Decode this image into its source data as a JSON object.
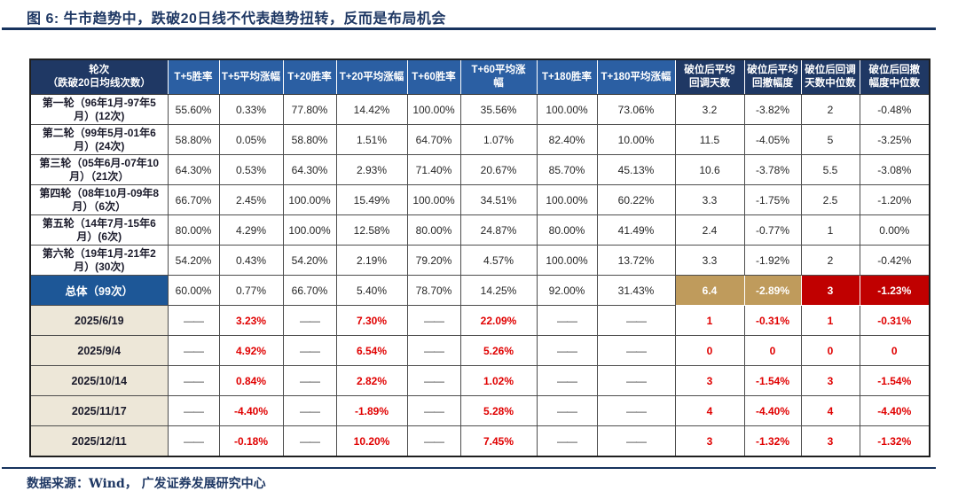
{
  "title": "图 6:  牛市趋势中，跌破20日线不代表趋势扭转，反而是布局机会",
  "footer": {
    "source": "数据来源：Wind， 广发证券发展研究中心"
  },
  "colors": {
    "title_navy": "#1F3864",
    "header_navy": "#1F3864",
    "header_blue": "#2B5FA3",
    "total_label_blue": "#1D5797",
    "highlight_tan": "#BF9B5C",
    "highlight_red_bg": "#C00000",
    "value_red_text": "#E00000",
    "date_label_beige": "#EDE7D8"
  },
  "table": {
    "columns": [
      {
        "label": "轮次\n（跌破20日均线次数）",
        "theme": "navy"
      },
      {
        "label": "T+5胜率",
        "theme": "blue"
      },
      {
        "label": "T+5平均涨幅",
        "theme": "blue"
      },
      {
        "label": "T+20胜率",
        "theme": "blue"
      },
      {
        "label": "T+20平均涨幅",
        "theme": "blue"
      },
      {
        "label": "T+60胜率",
        "theme": "blue"
      },
      {
        "label": "T+60平均涨\n幅",
        "theme": "blue"
      },
      {
        "label": "T+180胜率",
        "theme": "blue"
      },
      {
        "label": "T+180平均涨幅",
        "theme": "blue"
      },
      {
        "label": "破位后平均\n回调天数",
        "theme": "navy"
      },
      {
        "label": "破位后平均\n回撤幅度",
        "theme": "navy"
      },
      {
        "label": "破位后回调\n天数中位数",
        "theme": "navy"
      },
      {
        "label": "破位后回撤\n幅度中位数",
        "theme": "navy"
      }
    ],
    "rows": [
      {
        "type": "round",
        "label": "第一轮（96年1月-97年5月）(12次)",
        "cells": [
          "55.60%",
          "0.33%",
          "77.80%",
          "14.42%",
          "100.00%",
          "35.56%",
          "100.00%",
          "73.06%",
          "3.2",
          "-3.82%",
          "2",
          "-0.48%"
        ]
      },
      {
        "type": "round",
        "label": "第二轮（99年5月-01年6月）(24次)",
        "cells": [
          "58.80%",
          "0.05%",
          "58.80%",
          "1.51%",
          "64.70%",
          "1.07%",
          "82.40%",
          "10.00%",
          "11.5",
          "-4.05%",
          "5",
          "-3.25%"
        ]
      },
      {
        "type": "round",
        "label": "第三轮（05年6月-07年10月）（21次）",
        "cells": [
          "64.30%",
          "0.53%",
          "64.30%",
          "2.93%",
          "71.40%",
          "20.67%",
          "85.70%",
          "45.13%",
          "10.6",
          "-3.78%",
          "5.5",
          "-3.08%"
        ]
      },
      {
        "type": "round",
        "label": "第四轮（08年10月-09年8月）（6次）",
        "cells": [
          "66.70%",
          "2.45%",
          "100.00%",
          "15.49%",
          "100.00%",
          "34.51%",
          "100.00%",
          "60.22%",
          "3.3",
          "-1.75%",
          "2.5",
          "-1.20%"
        ]
      },
      {
        "type": "round",
        "label": "第五轮（14年7月-15年6月）(6次)",
        "cells": [
          "80.00%",
          "4.29%",
          "100.00%",
          "12.58%",
          "80.00%",
          "24.87%",
          "80.00%",
          "41.49%",
          "2.4",
          "-0.77%",
          "1",
          "0.00%"
        ]
      },
      {
        "type": "round",
        "label": "第六轮（19年1月-21年2月）(30次)",
        "cells": [
          "54.20%",
          "0.43%",
          "54.20%",
          "2.19%",
          "79.20%",
          "4.57%",
          "100.00%",
          "13.72%",
          "3.3",
          "-1.92%",
          "2",
          "-0.42%"
        ]
      },
      {
        "type": "total",
        "label": "总体（99次）",
        "cells": [
          "60.00%",
          "0.77%",
          "66.70%",
          "5.40%",
          "78.70%",
          "14.25%",
          "92.00%",
          "31.43%",
          "6.4",
          "-2.89%",
          "3",
          "-1.23%"
        ]
      },
      {
        "type": "date",
        "label": "2025/6/19",
        "cells": [
          "——",
          "3.23%",
          "——",
          "7.30%",
          "——",
          "22.09%",
          "——",
          "——",
          "1",
          "-0.31%",
          "1",
          "-0.31%"
        ]
      },
      {
        "type": "date",
        "label": "2025/9/4",
        "cells": [
          "——",
          "4.92%",
          "——",
          "6.54%",
          "——",
          "5.26%",
          "——",
          "——",
          "0",
          "0",
          "0",
          "0"
        ]
      },
      {
        "type": "date",
        "label": "2025/10/14",
        "cells": [
          "——",
          "0.84%",
          "——",
          "2.82%",
          "——",
          "1.02%",
          "——",
          "——",
          "3",
          "-1.54%",
          "3",
          "-1.54%"
        ]
      },
      {
        "type": "date",
        "label": "2025/11/17",
        "cells": [
          "——",
          "-4.40%",
          "——",
          "-1.89%",
          "——",
          "5.28%",
          "——",
          "——",
          "4",
          "-4.40%",
          "4",
          "-4.40%"
        ]
      },
      {
        "type": "date",
        "label": "2025/12/11",
        "cells": [
          "——",
          "-0.18%",
          "——",
          "10.20%",
          "——",
          "7.45%",
          "——",
          "——",
          "3",
          "-1.32%",
          "3",
          "-1.32%"
        ]
      }
    ]
  }
}
